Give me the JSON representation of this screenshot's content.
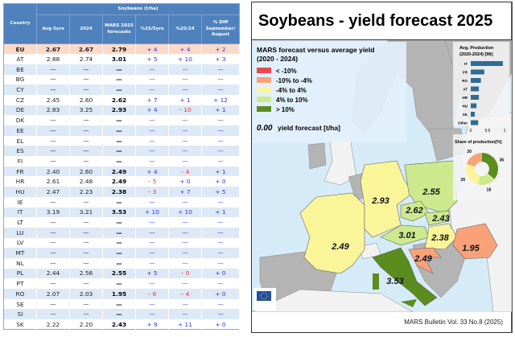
{
  "table": {
    "group_header": "Soybeans (t/ha)",
    "headers": [
      "Country",
      "Avg 5yrs",
      "2024",
      "MARS 2025 forecasts",
      "%25/5yrs",
      "%25/24",
      "% Diff September/ August"
    ],
    "rows": [
      [
        "EU",
        "2.67",
        "2.67",
        "2.79",
        "+ 4",
        "+ 4",
        "+ 2"
      ],
      [
        "AT",
        "2.88",
        "2.74",
        "3.01",
        "+ 5",
        "+ 10",
        "+ 3"
      ],
      [
        "BE",
        "—",
        "—",
        "—",
        "—",
        "—",
        "—"
      ],
      [
        "BG",
        "—",
        "—",
        "—",
        "—",
        "—",
        "—"
      ],
      [
        "CY",
        "—",
        "—",
        "—",
        "—",
        "—",
        "—"
      ],
      [
        "CZ",
        "2.45",
        "2.60",
        "2.62",
        "+ 7",
        "+ 1",
        "+ 12"
      ],
      [
        "DE",
        "2.83",
        "3.25",
        "2.93",
        "+ 4",
        "– 10",
        "+ 1"
      ],
      [
        "DK",
        "—",
        "—",
        "—",
        "—",
        "—",
        "—"
      ],
      [
        "EE",
        "—",
        "—",
        "—",
        "—",
        "—",
        "—"
      ],
      [
        "EL",
        "—",
        "—",
        "—",
        "—",
        "—",
        "—"
      ],
      [
        "ES",
        "—",
        "—",
        "—",
        "—",
        "—",
        "—"
      ],
      [
        "FI",
        "—",
        "—",
        "—",
        "—",
        "—",
        "—"
      ],
      [
        "FR",
        "2.40",
        "2.60",
        "2.49",
        "+ 4",
        "– 4",
        "+ 1"
      ],
      [
        "HR",
        "2.61",
        "2.48",
        "2.49",
        "– 5",
        "+ 0",
        "+ 0"
      ],
      [
        "HU",
        "2.47",
        "2.23",
        "2.38",
        "– 3",
        "+ 7",
        "+ 5"
      ],
      [
        "IE",
        "—",
        "—",
        "—",
        "—",
        "—",
        "—"
      ],
      [
        "IT",
        "3.19",
        "3.21",
        "3.53",
        "+ 10",
        "+ 10",
        "+ 1"
      ],
      [
        "LT",
        "—",
        "—",
        "—",
        "—",
        "—",
        "—"
      ],
      [
        "LU",
        "—",
        "—",
        "—",
        "—",
        "—",
        "—"
      ],
      [
        "LV",
        "—",
        "—",
        "—",
        "—",
        "—",
        "—"
      ],
      [
        "MT",
        "—",
        "—",
        "—",
        "—",
        "—",
        "—"
      ],
      [
        "NL",
        "—",
        "—",
        "—",
        "—",
        "—",
        "—"
      ],
      [
        "PL",
        "2.44",
        "2.56",
        "2.55",
        "+ 5",
        "– 0",
        "+ 0"
      ],
      [
        "PT",
        "—",
        "—",
        "—",
        "—",
        "—",
        "—"
      ],
      [
        "RO",
        "2.07",
        "2.03",
        "1.95",
        "– 6",
        "– 4",
        "+ 0"
      ],
      [
        "SE",
        "—",
        "—",
        "—",
        "—",
        "—",
        "—"
      ],
      [
        "SI",
        "—",
        "—",
        "—",
        "—",
        "—",
        "—"
      ],
      [
        "SK",
        "2.22",
        "2.20",
        "2.43",
        "+ 9",
        "+ 11",
        "+ 0"
      ]
    ]
  },
  "map": {
    "title": "Soybeans - yield forecast 2025",
    "legend_title_1": "MARS forecast versus average yield",
    "legend_title_2": "(2020 - 2024)",
    "legend": [
      {
        "label": "< -10%",
        "color": "#e84a4a"
      },
      {
        "label": "-10% to -4%",
        "color": "#f9a27a"
      },
      {
        "label": "-4% to 4%",
        "color": "#fbf59a"
      },
      {
        "label": "4% to 10%",
        "color": "#cce98e"
      },
      {
        "label": "> 10%",
        "color": "#5b8c1e"
      }
    ],
    "sample_value": "0.00",
    "sample_label": "yield forecast [t/ha]",
    "countries": [
      {
        "code": "FR",
        "value": "2.49",
        "color": "#fbf59a"
      },
      {
        "code": "DE",
        "value": "2.93",
        "color": "#fbf59a"
      },
      {
        "code": "PL",
        "value": "2.55",
        "color": "#cce98e"
      },
      {
        "code": "CZ",
        "value": "2.62",
        "color": "#cce98e"
      },
      {
        "code": "SK",
        "value": "2.43",
        "color": "#cce98e"
      },
      {
        "code": "AT",
        "value": "3.01",
        "color": "#cce98e"
      },
      {
        "code": "HU",
        "value": "2.38",
        "color": "#fbf59a"
      },
      {
        "code": "RO",
        "value": "1.95",
        "color": "#f9a27a"
      },
      {
        "code": "HR",
        "value": "2.49",
        "color": "#f9a27a"
      },
      {
        "code": "IT",
        "value": "3.53",
        "color": "#5b8c1e"
      }
    ],
    "production_chart": {
      "title_1": "Avg. Production",
      "title_2": "(2020-2024) [Mt]",
      "categories": [
        "IT",
        "FR",
        "RO",
        "AT",
        "HR",
        "HU",
        "SK",
        "Other"
      ],
      "values": [
        0.95,
        0.4,
        0.3,
        0.24,
        0.24,
        0.17,
        0.12,
        0.22
      ],
      "ticks": [
        "0",
        "0.5",
        "1"
      ],
      "color": "#2e6c93"
    },
    "share_chart": {
      "title": "Share of production[%]",
      "values": [
        36,
        18,
        26,
        20
      ],
      "colors": [
        "#5b8c1e",
        "#cce98e",
        "#fbf59a",
        "#f9a27a"
      ]
    },
    "footer": "MARS Bulletin Vol. 33 No.8 (2025)"
  }
}
